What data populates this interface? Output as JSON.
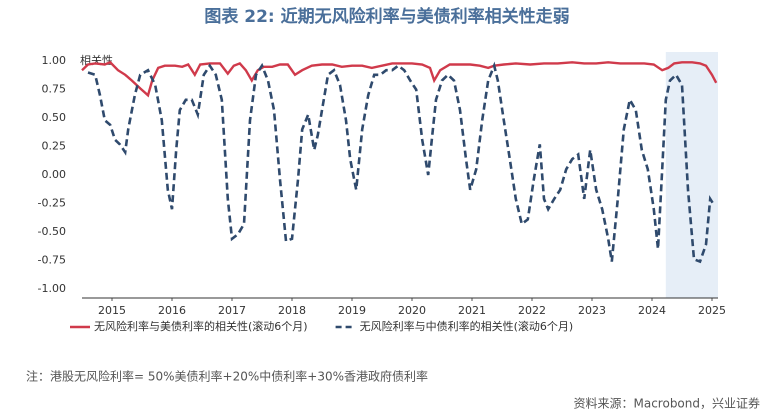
{
  "chart_data": {
    "type": "line",
    "title": "图表 22: 近期无风险利率与美债利率相关性走弱",
    "y_label": "相关性",
    "note": "注：港股无风险利率= 50%美债利率+20%中债利率+30%香港政府债利率",
    "source": "资料来源：Macrobond，兴业证券",
    "xlim": [
      2014.5,
      2025.1
    ],
    "xticks": [
      2015,
      2016,
      2017,
      2018,
      2019,
      2020,
      2021,
      2022,
      2023,
      2024,
      2025
    ],
    "ylim": [
      -1.08,
      1.08
    ],
    "yticks": [
      {
        "value": -1,
        "label": "-1.00"
      },
      {
        "value": -0.75,
        "label": "-0.75"
      },
      {
        "value": -0.5,
        "label": "-0.50"
      },
      {
        "value": -0.25,
        "label": "-0.25"
      },
      {
        "value": 0,
        "label": "0.00"
      },
      {
        "value": 0.25,
        "label": "0.25"
      },
      {
        "value": 0.5,
        "label": "0.50"
      },
      {
        "value": 0.75,
        "label": "0.75"
      },
      {
        "value": 1,
        "label": "1.00"
      }
    ],
    "highlight": [
      2024.23,
      2025.1
    ],
    "highlight_color": "#e6eef7",
    "series": [
      {
        "name": "无风险利率与美债利率的相关性(滚动6个月)",
        "color": "#d03a4b",
        "dash": false,
        "x": [
          2014.5,
          2014.6,
          2014.72,
          2014.88,
          2014.97,
          2015.1,
          2015.22,
          2015.33,
          2015.47,
          2015.6,
          2015.67,
          2015.77,
          2015.88,
          2016.05,
          2016.17,
          2016.27,
          2016.38,
          2016.47,
          2016.63,
          2016.8,
          2016.93,
          2017.03,
          2017.13,
          2017.23,
          2017.33,
          2017.43,
          2017.53,
          2017.67,
          2017.8,
          2017.93,
          2018.05,
          2018.17,
          2018.33,
          2018.5,
          2018.67,
          2018.83,
          2019.0,
          2019.17,
          2019.33,
          2019.5,
          2019.67,
          2019.83,
          2020.0,
          2020.17,
          2020.3,
          2020.37,
          2020.47,
          2020.63,
          2020.8,
          2020.97,
          2021.13,
          2021.27,
          2021.37,
          2021.53,
          2021.73,
          2021.97,
          2022.2,
          2022.43,
          2022.67,
          2022.87,
          2023.07,
          2023.27,
          2023.47,
          2023.67,
          2023.87,
          2024.03,
          2024.17,
          2024.27,
          2024.37,
          2024.5,
          2024.67,
          2024.8,
          2024.9,
          2025.0,
          2025.07
        ],
        "values": [
          0.92,
          0.97,
          0.98,
          0.97,
          0.99,
          0.92,
          0.88,
          0.83,
          0.76,
          0.7,
          0.83,
          0.94,
          0.96,
          0.96,
          0.95,
          0.97,
          0.88,
          0.97,
          0.98,
          0.98,
          0.89,
          0.96,
          0.98,
          0.92,
          0.83,
          0.92,
          0.95,
          0.95,
          0.97,
          0.97,
          0.88,
          0.92,
          0.96,
          0.97,
          0.97,
          0.95,
          0.96,
          0.96,
          0.94,
          0.96,
          0.98,
          0.98,
          0.98,
          0.97,
          0.94,
          0.83,
          0.92,
          0.97,
          0.97,
          0.97,
          0.96,
          0.94,
          0.96,
          0.97,
          0.98,
          0.97,
          0.98,
          0.98,
          0.99,
          0.98,
          0.98,
          0.99,
          0.98,
          0.98,
          0.98,
          0.97,
          0.92,
          0.94,
          0.98,
          0.99,
          0.99,
          0.98,
          0.96,
          0.88,
          0.81
        ]
      },
      {
        "name": "无风险利率与中债利率的相关性(滚动6个月)",
        "color": "#2f4a6d",
        "dash": true,
        "x": [
          2014.6,
          2014.72,
          2014.8,
          2014.88,
          2014.97,
          2015.05,
          2015.13,
          2015.22,
          2015.27,
          2015.38,
          2015.47,
          2015.6,
          2015.72,
          2015.83,
          2015.93,
          2016.0,
          2016.07,
          2016.13,
          2016.23,
          2016.33,
          2016.43,
          2016.53,
          2016.63,
          2016.73,
          2016.83,
          2016.93,
          2017.0,
          2017.1,
          2017.2,
          2017.3,
          2017.4,
          2017.5,
          2017.6,
          2017.7,
          2017.8,
          2017.9,
          2018.0,
          2018.1,
          2018.17,
          2018.27,
          2018.37,
          2018.43,
          2018.5,
          2018.6,
          2018.7,
          2018.8,
          2018.9,
          2018.97,
          2019.07,
          2019.17,
          2019.27,
          2019.37,
          2019.47,
          2019.57,
          2019.67,
          2019.77,
          2019.87,
          2019.97,
          2020.07,
          2020.17,
          2020.27,
          2020.33,
          2020.4,
          2020.5,
          2020.6,
          2020.7,
          2020.8,
          2020.9,
          2020.97,
          2021.07,
          2021.17,
          2021.27,
          2021.37,
          2021.43,
          2021.53,
          2021.63,
          2021.73,
          2021.83,
          2021.93,
          2022.03,
          2022.13,
          2022.2,
          2022.27,
          2022.37,
          2022.47,
          2022.57,
          2022.67,
          2022.77,
          2022.87,
          2022.97,
          2023.07,
          2023.17,
          2023.27,
          2023.33,
          2023.43,
          2023.53,
          2023.63,
          2023.73,
          2023.83,
          2023.93,
          2024.03,
          2024.1,
          2024.17,
          2024.23,
          2024.3,
          2024.4,
          2024.5,
          2024.6,
          2024.7,
          2024.8,
          2024.9,
          2024.97,
          2025.03
        ],
        "values": [
          0.9,
          0.88,
          0.7,
          0.48,
          0.44,
          0.31,
          0.27,
          0.2,
          0.4,
          0.7,
          0.88,
          0.92,
          0.79,
          0.48,
          -0.13,
          -0.3,
          0.22,
          0.57,
          0.66,
          0.66,
          0.53,
          0.88,
          0.96,
          0.88,
          0.66,
          -0.21,
          -0.56,
          -0.52,
          -0.43,
          0.48,
          0.88,
          0.96,
          0.83,
          0.57,
          -0.04,
          -0.58,
          -0.56,
          -0.04,
          0.4,
          0.53,
          0.22,
          0.35,
          0.57,
          0.88,
          0.92,
          0.79,
          0.48,
          0.14,
          -0.13,
          0.4,
          0.7,
          0.88,
          0.88,
          0.92,
          0.92,
          0.96,
          0.92,
          0.83,
          0.75,
          0.31,
          0.0,
          0.31,
          0.66,
          0.83,
          0.88,
          0.83,
          0.57,
          0.14,
          -0.13,
          0.05,
          0.48,
          0.83,
          0.96,
          0.83,
          0.48,
          0.14,
          -0.21,
          -0.43,
          -0.39,
          -0.04,
          0.27,
          -0.21,
          -0.3,
          -0.21,
          -0.13,
          0.05,
          0.14,
          0.18,
          -0.21,
          0.22,
          -0.13,
          -0.3,
          -0.56,
          -0.76,
          -0.21,
          0.4,
          0.66,
          0.57,
          0.22,
          0.05,
          -0.3,
          -0.65,
          0.05,
          0.66,
          0.83,
          0.88,
          0.79,
          -0.13,
          -0.74,
          -0.76,
          -0.61,
          -0.21,
          -0.26
        ]
      }
    ]
  }
}
